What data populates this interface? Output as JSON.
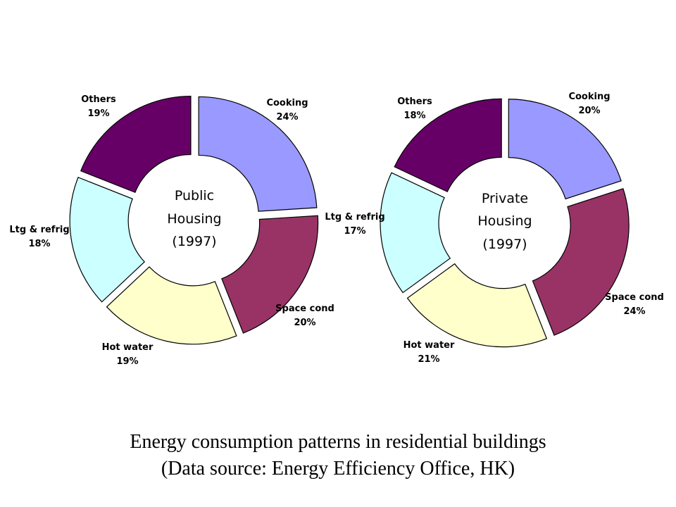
{
  "chart_data": [
    {
      "type": "pie",
      "variant": "exploded-doughnut",
      "center_label": [
        "Public",
        "Housing",
        "(1997)"
      ],
      "slices": [
        {
          "name": "Cooking",
          "value": 24,
          "label": "24%",
          "color": "#9999ff"
        },
        {
          "name": "Space cond",
          "value": 20,
          "label": "20%",
          "color": "#993366"
        },
        {
          "name": "Hot water",
          "value": 19,
          "label": "19%",
          "color": "#ffffcc"
        },
        {
          "name": "Ltg & refrig",
          "value": 18,
          "label": "18%",
          "color": "#ccffff"
        },
        {
          "name": "Others",
          "value": 19,
          "label": "19%",
          "color": "#660066"
        }
      ]
    },
    {
      "type": "pie",
      "variant": "exploded-doughnut",
      "center_label": [
        "Private",
        "Housing",
        "(1997)"
      ],
      "slices": [
        {
          "name": "Cooking",
          "value": 20,
          "label": "20%",
          "color": "#9999ff"
        },
        {
          "name": "Space cond",
          "value": 24,
          "label": "24%",
          "color": "#993366"
        },
        {
          "name": "Hot water",
          "value": 21,
          "label": "21%",
          "color": "#ffffcc"
        },
        {
          "name": "Ltg & refrig",
          "value": 17,
          "label": "17%",
          "color": "#ccffff"
        },
        {
          "name": "Others",
          "value": 18,
          "label": "18%",
          "color": "#660066"
        }
      ]
    }
  ],
  "caption": {
    "line1": "Energy consumption patterns in residential buildings",
    "line2": "(Data source: Energy Efficiency Office, HK)"
  }
}
